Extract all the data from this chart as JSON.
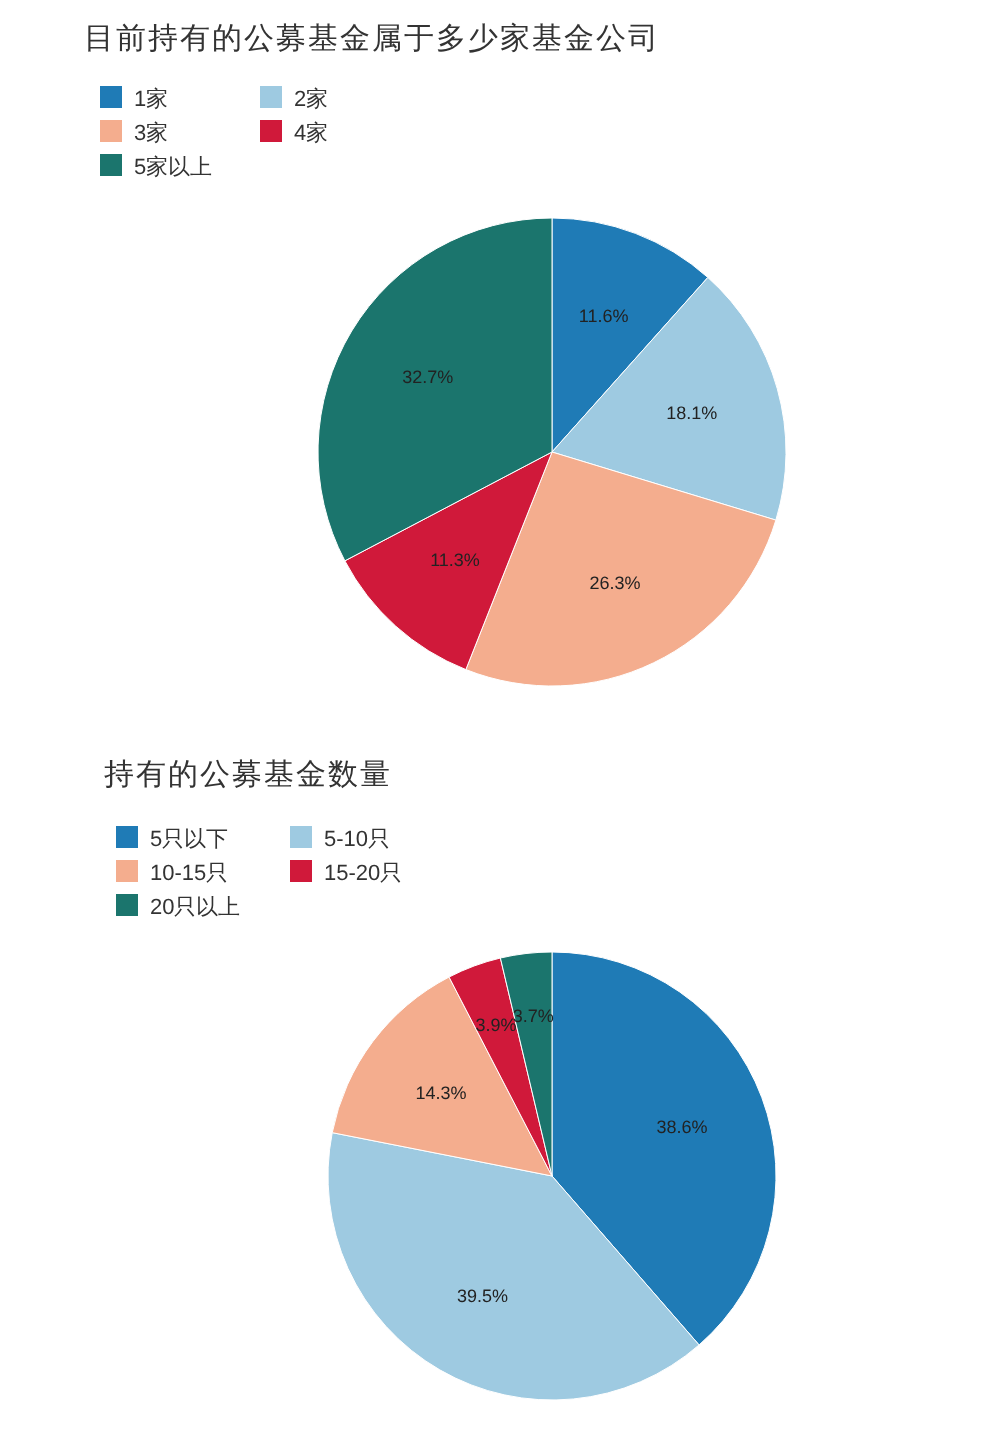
{
  "chart_data": [
    {
      "type": "pie",
      "title": "目前持有的公募基金属于多少家基金公司",
      "categories": [
        "1家",
        "2家",
        "3家",
        "4家",
        "5家以上"
      ],
      "values": [
        11.6,
        18.1,
        26.3,
        11.3,
        32.7
      ],
      "colors": [
        "#1f7bb6",
        "#9ecae1",
        "#f4ad8e",
        "#d0193a",
        "#1b756d"
      ],
      "value_labels": [
        "11.6%",
        "18.1%",
        "26.3%",
        "11.3%",
        "32.7%"
      ],
      "legend": "top left"
    },
    {
      "type": "pie",
      "title": "持有的公募基金数量",
      "categories": [
        "5只以下",
        "5-10只",
        "10-15只",
        "15-20只",
        "20只以上"
      ],
      "values": [
        38.6,
        39.5,
        14.3,
        3.9,
        3.7
      ],
      "colors": [
        "#1f7bb6",
        "#9ecae1",
        "#f4ad8e",
        "#d0193a",
        "#1b756d"
      ],
      "value_labels": [
        "38.6%",
        "39.5%",
        "14.3%",
        "3.9%",
        "3.7%"
      ],
      "legend": "top left"
    }
  ]
}
